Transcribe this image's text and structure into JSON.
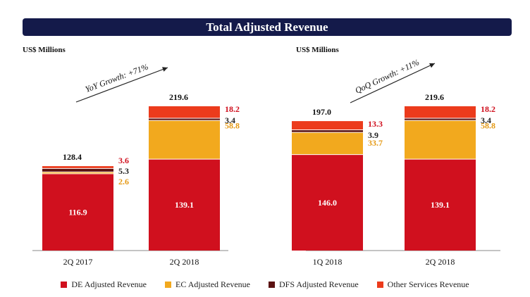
{
  "title": "Total Adjusted Revenue",
  "colors": {
    "de": "#d0101e",
    "ec": "#f2a91e",
    "dfs": "#5b1212",
    "other": "#ec3b1c",
    "banner": "#141a4a",
    "arrow": "#222222"
  },
  "chart_data": [
    {
      "type": "bar",
      "stacked": true,
      "unit_label": "US$ Millions",
      "growth_label": "YoY Growth: +71%",
      "categories": [
        "2Q 2017",
        "2Q 2018"
      ],
      "totals": [
        128.4,
        219.6
      ],
      "series": [
        {
          "name": "DE Adjusted Revenue",
          "key": "de",
          "values": [
            116.9,
            139.1
          ]
        },
        {
          "name": "EC Adjusted Revenue",
          "key": "ec",
          "values": [
            2.6,
            58.8
          ]
        },
        {
          "name": "DFS Adjusted Revenue",
          "key": "dfs",
          "values": [
            5.3,
            3.4
          ]
        },
        {
          "name": "Other Services Revenue",
          "key": "other",
          "values": [
            3.6,
            18.2
          ]
        }
      ]
    },
    {
      "type": "bar",
      "stacked": true,
      "unit_label": "US$ Millions",
      "growth_label": "QoQ Growth: +11%",
      "categories": [
        "1Q 2018",
        "2Q 2018"
      ],
      "totals": [
        197.0,
        219.6
      ],
      "series": [
        {
          "name": "DE Adjusted Revenue",
          "key": "de",
          "values": [
            146.0,
            139.1
          ]
        },
        {
          "name": "EC Adjusted Revenue",
          "key": "ec",
          "values": [
            33.7,
            58.8
          ]
        },
        {
          "name": "DFS Adjusted Revenue",
          "key": "dfs",
          "values": [
            3.9,
            3.4
          ]
        },
        {
          "name": "Other Services Revenue",
          "key": "other",
          "values": [
            13.3,
            18.2
          ]
        }
      ]
    }
  ],
  "legend": [
    {
      "label": "DE Adjusted Revenue",
      "key": "de"
    },
    {
      "label": "EC Adjusted Revenue",
      "key": "ec"
    },
    {
      "label": "DFS Adjusted Revenue",
      "key": "dfs"
    },
    {
      "label": "Other Services Revenue",
      "key": "other"
    }
  ]
}
